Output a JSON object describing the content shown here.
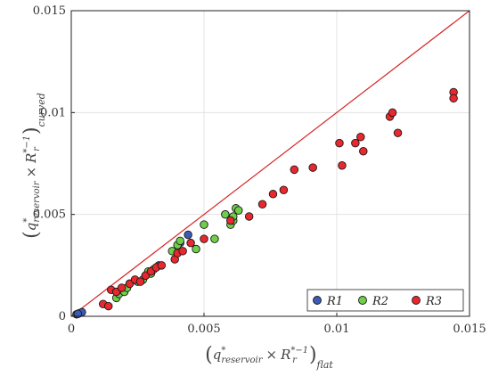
{
  "chart_data": {
    "type": "scatter",
    "title": "",
    "xlabel": {
      "base": "q",
      "sup": "*",
      "sub1": "reservoir",
      "times": "×",
      "r": "R",
      "r_sup": "*−1",
      "r_sub": "r",
      "outer_sub": "flat"
    },
    "ylabel": {
      "base": "q",
      "sup": "*",
      "sub1": "reservoir",
      "times": "×",
      "r": "R",
      "r_sup": "*−1",
      "r_sub": "r",
      "outer_sub": "curved"
    },
    "xlim": [
      0,
      0.015
    ],
    "ylim": [
      0,
      0.015
    ],
    "xticks": [
      0,
      0.005,
      0.01,
      0.015
    ],
    "yticks": [
      0,
      0.005,
      0.01,
      0.015
    ],
    "xtick_labels": [
      "0",
      "0.005",
      "0.01",
      "0.015"
    ],
    "ytick_labels": [
      "0",
      "0.005",
      "0.01",
      "0.015"
    ],
    "grid": true,
    "legend_position": "bottom-right",
    "reference_line": {
      "from": [
        0,
        0
      ],
      "to": [
        0.015,
        0.015
      ],
      "color": "#d62728"
    },
    "series": [
      {
        "name": "R1",
        "color": "#3b5bb5",
        "points": [
          [
            0.0002,
            0.0001
          ],
          [
            0.0003,
            0.00015
          ],
          [
            0.0004,
            0.0002
          ],
          [
            0.00025,
            0.00012
          ],
          [
            0.0033,
            0.0025
          ],
          [
            0.0044,
            0.004
          ],
          [
            0.0041,
            0.0036
          ]
        ]
      },
      {
        "name": "R2",
        "color": "#6fcf4a",
        "points": [
          [
            0.0017,
            0.0009
          ],
          [
            0.0018,
            0.0011
          ],
          [
            0.002,
            0.0012
          ],
          [
            0.0021,
            0.0014
          ],
          [
            0.0022,
            0.0016
          ],
          [
            0.0025,
            0.0017
          ],
          [
            0.0027,
            0.0018
          ],
          [
            0.0028,
            0.002
          ],
          [
            0.0029,
            0.0022
          ],
          [
            0.003,
            0.0021
          ],
          [
            0.0031,
            0.0023
          ],
          [
            0.0038,
            0.0032
          ],
          [
            0.004,
            0.0035
          ],
          [
            0.0041,
            0.0037
          ],
          [
            0.0047,
            0.0033
          ],
          [
            0.005,
            0.0045
          ],
          [
            0.0054,
            0.0038
          ],
          [
            0.0058,
            0.005
          ],
          [
            0.006,
            0.0045
          ],
          [
            0.0061,
            0.0047
          ],
          [
            0.0062,
            0.0053
          ],
          [
            0.0063,
            0.0052
          ],
          [
            0.0061,
            0.0049
          ]
        ]
      },
      {
        "name": "R3",
        "color": "#e8282e",
        "points": [
          [
            0.0012,
            0.0006
          ],
          [
            0.0014,
            0.0005
          ],
          [
            0.0015,
            0.0013
          ],
          [
            0.0017,
            0.0012
          ],
          [
            0.0019,
            0.0014
          ],
          [
            0.0022,
            0.0016
          ],
          [
            0.0024,
            0.0018
          ],
          [
            0.0026,
            0.0017
          ],
          [
            0.0028,
            0.002
          ],
          [
            0.003,
            0.0022
          ],
          [
            0.0032,
            0.0024
          ],
          [
            0.0034,
            0.0025
          ],
          [
            0.0039,
            0.0028
          ],
          [
            0.004,
            0.0031
          ],
          [
            0.0042,
            0.0032
          ],
          [
            0.0045,
            0.0036
          ],
          [
            0.005,
            0.0038
          ],
          [
            0.006,
            0.0047
          ],
          [
            0.0067,
            0.0049
          ],
          [
            0.0072,
            0.0055
          ],
          [
            0.0076,
            0.006
          ],
          [
            0.008,
            0.0062
          ],
          [
            0.0084,
            0.0072
          ],
          [
            0.0091,
            0.0073
          ],
          [
            0.0101,
            0.0085
          ],
          [
            0.0102,
            0.0074
          ],
          [
            0.0107,
            0.0085
          ],
          [
            0.0109,
            0.0088
          ],
          [
            0.011,
            0.0081
          ],
          [
            0.012,
            0.0098
          ],
          [
            0.0121,
            0.01
          ],
          [
            0.0123,
            0.009
          ],
          [
            0.0144,
            0.011
          ],
          [
            0.0144,
            0.0107
          ]
        ]
      }
    ]
  }
}
